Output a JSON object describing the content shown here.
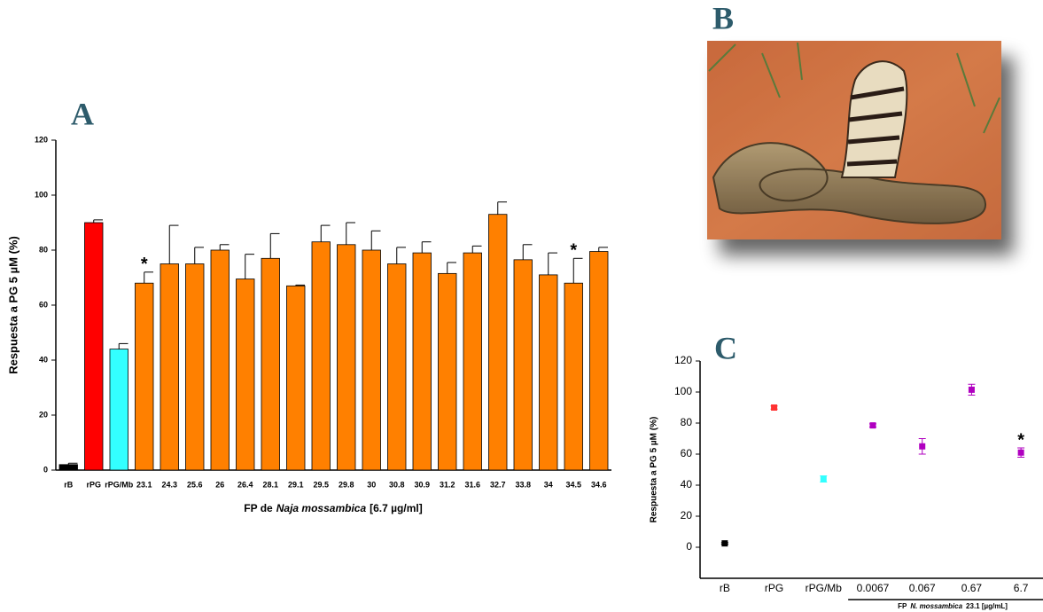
{
  "panels": [
    "A",
    "B",
    "C"
  ],
  "chart_data": [
    {
      "type": "bar",
      "y_label": "Respuesta a PG  5 µM  (%)",
      "x_label": [
        "FP de",
        "Naja mossambica",
        "[6.7 µg/ml]"
      ],
      "categories": [
        "rB",
        "rPG",
        "rPG/Mb",
        "23.1",
        "24.3",
        "25.6",
        "26",
        "26.4",
        "28.1",
        "29.1",
        "29.5",
        "29.8",
        "30",
        "30.8",
        "30.9",
        "31.2",
        "31.6",
        "32.7",
        "33.8",
        "34",
        "34.5",
        "34.6"
      ],
      "values": [
        2,
        90,
        44,
        68,
        75,
        75,
        80,
        69.5,
        77,
        67,
        83,
        82,
        80,
        75,
        79,
        71.5,
        79,
        93,
        76.5,
        71,
        68,
        79.5
      ],
      "errors": [
        0.5,
        1,
        2,
        4,
        14,
        6,
        2,
        9,
        9,
        0.3,
        6,
        8,
        7,
        6,
        4,
        4,
        2.5,
        4.5,
        5.5,
        8,
        9,
        1.5
      ],
      "colors": [
        "#000000",
        "#ff0000",
        "#33ffff",
        "#ff8000",
        "#ff8000",
        "#ff8000",
        "#ff8000",
        "#ff8000",
        "#ff8000",
        "#ff8000",
        "#ff8000",
        "#ff8000",
        "#ff8000",
        "#ff8000",
        "#ff8000",
        "#ff8000",
        "#ff8000",
        "#ff8000",
        "#ff8000",
        "#ff8000",
        "#ff8000",
        "#ff8000"
      ],
      "significance": [
        null,
        null,
        null,
        "*",
        null,
        null,
        null,
        null,
        null,
        null,
        null,
        null,
        null,
        null,
        null,
        null,
        null,
        null,
        null,
        null,
        "*",
        null
      ],
      "ylim": [
        0,
        120
      ],
      "yticks": [
        0,
        20,
        40,
        60,
        80,
        100,
        120
      ]
    },
    {
      "type": "scatter",
      "y_label": "Respuesta a PG  5 µM  (%)",
      "x_label": [
        "FP",
        "N. mossambica",
        "23.1 [µg/mL]"
      ],
      "categories": [
        "rB",
        "rPG",
        "rPG/Mb",
        "0.0067",
        "0.067",
        "0.67",
        "6.7"
      ],
      "values": [
        2.5,
        90,
        44,
        78.5,
        65,
        101.5,
        61
      ],
      "errors": [
        0.5,
        1,
        2,
        1,
        5,
        3.5,
        3
      ],
      "colors": [
        "#000000",
        "#ff3333",
        "#33ffff",
        "#b000c0",
        "#b000c0",
        "#b000c0",
        "#b000c0"
      ],
      "significance": [
        null,
        null,
        null,
        null,
        null,
        null,
        "*"
      ],
      "ylim": [
        -20,
        120
      ],
      "yticks": [
        0,
        20,
        40,
        60,
        80,
        100,
        120
      ]
    }
  ]
}
